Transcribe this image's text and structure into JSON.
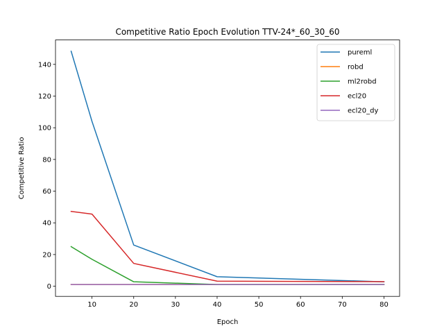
{
  "chart_data": {
    "type": "line",
    "title": "Competitive Ratio Epoch Evolution TTV-24*_60_30_60",
    "xlabel": "Epoch",
    "ylabel": "Competitive Ratio",
    "x": [
      5,
      10,
      20,
      40,
      80
    ],
    "xlim": [
      1.25,
      83.75
    ],
    "ylim": [
      -6.4,
      155.4
    ],
    "xticks": [
      10,
      20,
      30,
      40,
      50,
      60,
      70,
      80
    ],
    "yticks": [
      0,
      20,
      40,
      60,
      80,
      100,
      120,
      140
    ],
    "grid": false,
    "legend_position": "top-right",
    "series": [
      {
        "name": "pureml",
        "color": "#1f77b4",
        "values": [
          148.3,
          104.0,
          26.0,
          6.0,
          2.8
        ]
      },
      {
        "name": "robd",
        "color": "#ff7f0e",
        "values": [
          1.1,
          1.1,
          1.1,
          1.1,
          1.1
        ]
      },
      {
        "name": "ml2robd",
        "color": "#2ca02c",
        "values": [
          25.0,
          17.0,
          2.8,
          1.1,
          1.1
        ]
      },
      {
        "name": "ecl20",
        "color": "#d62728",
        "values": [
          47.2,
          45.5,
          14.4,
          3.2,
          2.9
        ]
      },
      {
        "name": "ecl20_dy",
        "color": "#9467bd",
        "values": [
          1.1,
          1.1,
          1.1,
          1.1,
          1.1
        ]
      }
    ]
  }
}
